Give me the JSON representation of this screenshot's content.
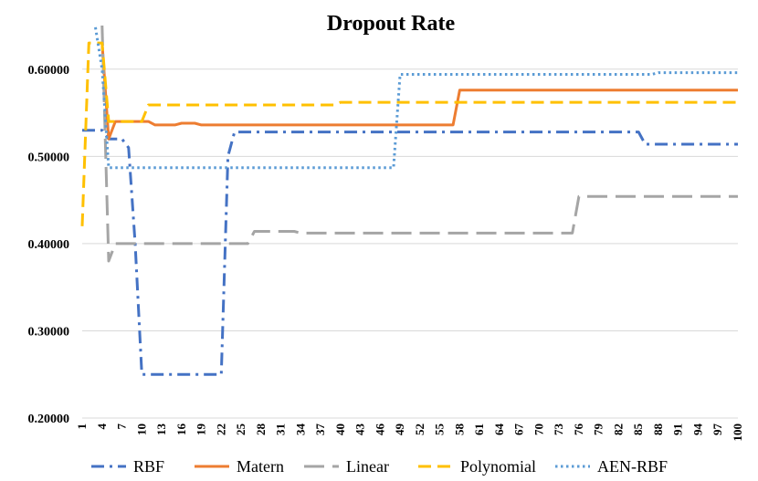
{
  "chart_data": {
    "type": "line",
    "title": "Dropout Rate",
    "xlabel": "",
    "ylabel": "",
    "ylim": [
      0.2,
      0.65
    ],
    "xlim": [
      1,
      100
    ],
    "y_ticks": [
      "0.20000",
      "0.30000",
      "0.40000",
      "0.50000",
      "0.60000"
    ],
    "y_tick_values": [
      0.2,
      0.3,
      0.4,
      0.5,
      0.6
    ],
    "x_ticks": [
      "1",
      "4",
      "7",
      "10",
      "13",
      "16",
      "19",
      "22",
      "25",
      "28",
      "31",
      "34",
      "37",
      "40",
      "43",
      "46",
      "49",
      "52",
      "55",
      "58",
      "61",
      "64",
      "67",
      "70",
      "73",
      "76",
      "79",
      "82",
      "85",
      "88",
      "91",
      "94",
      "97",
      "100"
    ],
    "grid": "horizontal",
    "legend_position": "bottom",
    "series": [
      {
        "name": "RBF",
        "color": "#4472C4",
        "dash": "dashdot",
        "points": [
          [
            1,
            0.53
          ],
          [
            4,
            0.53
          ],
          [
            5,
            0.52
          ],
          [
            7,
            0.52
          ],
          [
            8,
            0.51
          ],
          [
            9,
            0.4
          ],
          [
            10,
            0.25
          ],
          [
            22,
            0.25
          ],
          [
            23,
            0.5
          ],
          [
            24,
            0.528
          ],
          [
            85,
            0.528
          ],
          [
            86,
            0.514
          ],
          [
            100,
            0.514
          ]
        ]
      },
      {
        "name": "Matern",
        "color": "#ED7D31",
        "dash": "solid",
        "points": [
          [
            4,
            0.63
          ],
          [
            5,
            0.52
          ],
          [
            6,
            0.54
          ],
          [
            11,
            0.54
          ],
          [
            12,
            0.536
          ],
          [
            15,
            0.536
          ],
          [
            16,
            0.538
          ],
          [
            18,
            0.538
          ],
          [
            19,
            0.536
          ],
          [
            57,
            0.536
          ],
          [
            58,
            0.576
          ],
          [
            100,
            0.576
          ]
        ]
      },
      {
        "name": "Linear",
        "color": "#A5A5A5",
        "dash": "longdash",
        "points": [
          [
            4,
            0.65
          ],
          [
            5,
            0.38
          ],
          [
            6,
            0.4
          ],
          [
            26,
            0.4
          ],
          [
            27,
            0.414
          ],
          [
            30,
            0.414
          ],
          [
            33,
            0.414
          ],
          [
            34,
            0.412
          ],
          [
            75,
            0.412
          ],
          [
            76,
            0.454
          ],
          [
            100,
            0.454
          ]
        ]
      },
      {
        "name": "Polynomial",
        "color": "#FFC000",
        "dash": "dash",
        "points": [
          [
            1,
            0.42
          ],
          [
            2,
            0.63
          ],
          [
            4,
            0.63
          ],
          [
            5,
            0.54
          ],
          [
            10,
            0.54
          ],
          [
            11,
            0.559
          ],
          [
            39,
            0.559
          ],
          [
            40,
            0.562
          ],
          [
            100,
            0.562
          ]
        ]
      },
      {
        "name": "AEN-RBF",
        "color": "#5B9BD5",
        "dash": "dot",
        "points": [
          [
            3,
            0.648
          ],
          [
            4,
            0.6
          ],
          [
            5,
            0.487
          ],
          [
            47,
            0.487
          ],
          [
            48,
            0.487
          ],
          [
            49,
            0.594
          ],
          [
            87,
            0.594
          ],
          [
            88,
            0.596
          ],
          [
            100,
            0.596
          ]
        ]
      }
    ]
  }
}
